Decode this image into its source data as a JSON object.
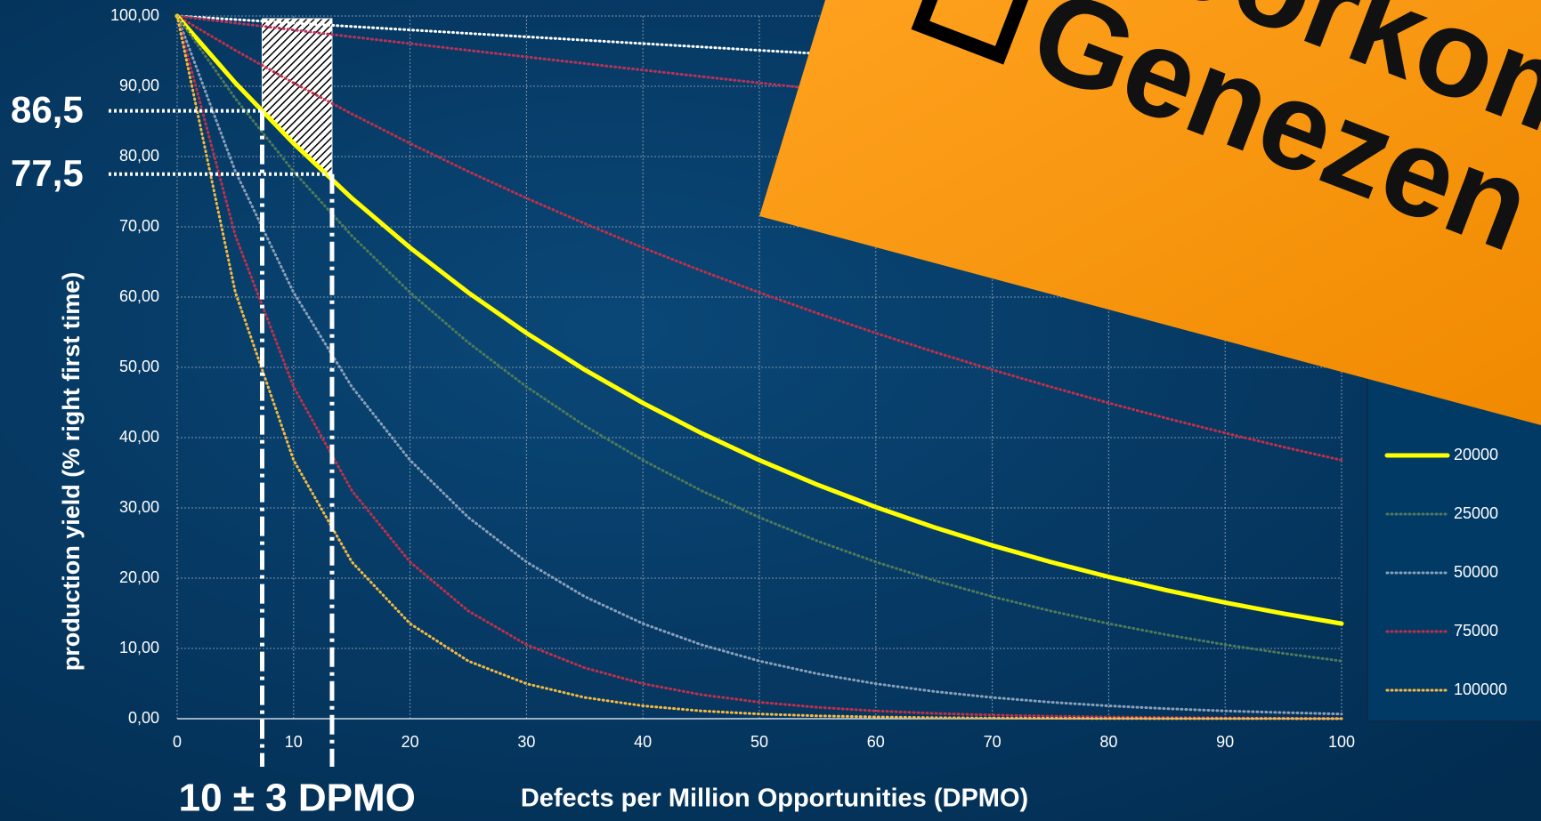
{
  "chart_data": {
    "type": "line",
    "y_label": "production yield (% right first time)",
    "x_label": "Defects per Million Opportunities (DPMO)",
    "x": [
      0,
      5,
      10,
      15,
      20,
      25,
      30,
      35,
      40,
      45,
      50,
      55,
      60,
      65,
      70,
      75,
      80,
      85,
      90,
      95,
      100
    ],
    "xlim": [
      0,
      100
    ],
    "xticks": [
      0,
      10,
      20,
      30,
      40,
      50,
      60,
      70,
      80,
      90,
      100
    ],
    "ylim": [
      0,
      100
    ],
    "yticks": [
      {
        "value": 0,
        "label": "0,00"
      },
      {
        "value": 10,
        "label": "10,00"
      },
      {
        "value": 20,
        "label": "20,00"
      },
      {
        "value": 30,
        "label": "30,00"
      },
      {
        "value": 40,
        "label": "40,00"
      },
      {
        "value": 50,
        "label": "50,00"
      },
      {
        "value": 60,
        "label": "60,00"
      },
      {
        "value": 70,
        "label": "70,00"
      },
      {
        "value": 80,
        "label": "80,00"
      },
      {
        "value": 90,
        "label": "90,00"
      },
      {
        "value": 100,
        "label": "100,00"
      }
    ],
    "grid": true,
    "series": [
      {
        "name": null,
        "color": "#ffffff",
        "dotted": true,
        "values": [
          100,
          99.5,
          99.0,
          98.51,
          98.02,
          97.53,
          97.04,
          96.56,
          96.08,
          95.6,
          95.12,
          94.65,
          94.18,
          93.71,
          93.24,
          92.77,
          92.31,
          91.86,
          91.39,
          90.94,
          90.48
        ]
      },
      {
        "name": null,
        "color": "#b8325a",
        "dotted": true,
        "values": [
          100,
          99.0,
          98.02,
          97.04,
          96.08,
          95.12,
          94.18,
          93.24,
          92.31,
          91.39,
          90.48,
          89.58,
          88.69,
          87.81,
          86.94,
          86.07,
          85.21,
          84.36,
          83.53,
          82.7,
          81.87
        ]
      },
      {
        "name": null,
        "color": "#c0304a",
        "dotted": true,
        "values": [
          100,
          95.12,
          90.48,
          86.07,
          81.87,
          77.88,
          74.08,
          70.47,
          67.03,
          63.76,
          60.65,
          57.69,
          54.88,
          52.2,
          49.66,
          47.24,
          44.93,
          42.74,
          40.66,
          38.67,
          36.79
        ]
      },
      {
        "name": "20000",
        "color": "#ffff00",
        "dotted": false,
        "values": [
          100,
          90.48,
          81.87,
          74.08,
          67.03,
          60.65,
          54.88,
          49.66,
          44.93,
          40.66,
          36.79,
          33.29,
          30.12,
          27.25,
          24.66,
          22.31,
          20.19,
          18.27,
          16.53,
          14.96,
          13.53
        ]
      },
      {
        "name": "25000",
        "color": "#4f7a5a",
        "dotted": true,
        "values": [
          100,
          88.25,
          77.88,
          68.73,
          60.65,
          53.53,
          47.24,
          41.69,
          36.79,
          32.47,
          28.65,
          25.28,
          22.31,
          19.69,
          17.38,
          15.34,
          13.53,
          11.94,
          10.54,
          9.3,
          8.21
        ]
      },
      {
        "name": "50000",
        "color": "#8aa0b8",
        "dotted": true,
        "values": [
          100,
          77.88,
          60.65,
          47.24,
          36.79,
          28.65,
          22.31,
          17.38,
          13.53,
          10.54,
          8.21,
          6.39,
          4.98,
          3.88,
          3.02,
          2.35,
          1.83,
          1.43,
          1.11,
          0.87,
          0.67
        ]
      },
      {
        "name": "75000",
        "color": "#c0304a",
        "dotted": true,
        "values": [
          100,
          68.73,
          47.24,
          32.47,
          22.31,
          15.34,
          10.54,
          7.24,
          4.98,
          3.42,
          2.35,
          1.62,
          1.11,
          0.76,
          0.52,
          0.36,
          0.25,
          0.17,
          0.12,
          0.08,
          0.06
        ]
      },
      {
        "name": "100000",
        "color": "#f5b942",
        "dotted": true,
        "values": [
          100,
          60.65,
          36.79,
          22.31,
          13.53,
          8.21,
          4.98,
          3.02,
          1.83,
          1.11,
          0.67,
          0.41,
          0.25,
          0.15,
          0.09,
          0.06,
          0.03,
          0.02,
          0.01,
          0.01,
          0.0
        ]
      }
    ],
    "annotations": {
      "y_markers": [
        {
          "value": 86.5,
          "label": "86,5"
        },
        {
          "value": 77.5,
          "label": "77,5"
        }
      ],
      "x_range": {
        "label": "10 ± 3 DPMO",
        "lines": [
          7.3,
          13.3
        ]
      }
    }
  },
  "sticker": {
    "line1": "Voorkom",
    "line2": "Genezen"
  }
}
